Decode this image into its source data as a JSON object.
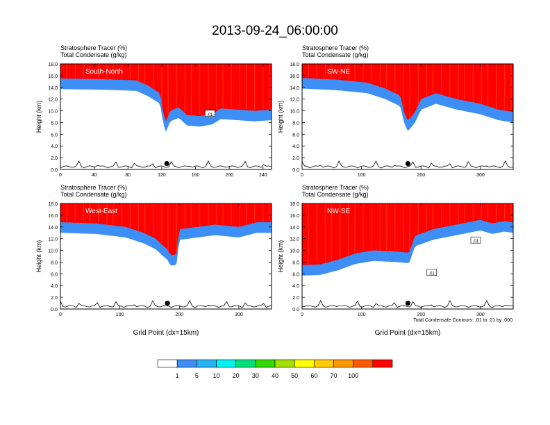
{
  "figure_title": "2013-09-24_06:00:00",
  "footnote": "Total Condensate Contours: .01 to .01 by .000",
  "colorbar": {
    "levels": [
      "1",
      "5",
      "10",
      "20",
      "30",
      "40",
      "50",
      "60",
      "70",
      "100"
    ],
    "colors": [
      "#ffffff",
      "#3d8ef5",
      "#27b3f2",
      "#00f2f2",
      "#00e07a",
      "#33d900",
      "#a3e000",
      "#ffff00",
      "#ffcc00",
      "#ff9900",
      "#ff5900",
      "#ff0000"
    ]
  },
  "chart_data": [
    {
      "type": "contour",
      "label": "South-North",
      "subtitle1": "Stratosphere Tracer   (%)",
      "subtitle2": "Total Condensate   (g/kg)",
      "xlabel": "",
      "ylabel": "Height (km)",
      "xlim": [
        0,
        250
      ],
      "ylim": [
        0,
        18
      ],
      "xticks": [
        "0",
        "40",
        "80",
        "120",
        "160",
        "200",
        "240"
      ],
      "xtick_values": [
        0,
        40,
        80,
        120,
        160,
        200,
        240
      ],
      "yticks": [
        "0.0",
        "2.0",
        "4.0",
        "6.0",
        "8.0",
        "10.0",
        "12.0",
        "14.0",
        "16.0",
        "18.0"
      ],
      "tracer_boundary_km": [
        [
          0,
          15.5
        ],
        [
          50,
          15.4
        ],
        [
          90,
          15.2
        ],
        [
          105,
          14.2
        ],
        [
          118,
          13.0
        ],
        [
          122,
          9.5
        ],
        [
          125,
          8.2
        ],
        [
          130,
          10.0
        ],
        [
          140,
          10.6
        ],
        [
          150,
          9.3
        ],
        [
          165,
          9.1
        ],
        [
          180,
          9.5
        ],
        [
          190,
          10.4
        ],
        [
          210,
          10.2
        ],
        [
          230,
          10.0
        ],
        [
          250,
          10.2
        ]
      ],
      "marker": [
        126,
        1.0
      ],
      "contour_label": ".01",
      "contour_label_pos": [
        177,
        9.5
      ]
    },
    {
      "type": "contour",
      "label": "SW-NE",
      "subtitle1": "Stratosphere Tracer   (%)",
      "subtitle2": "Total Condensate   (g/kg)",
      "xlabel": "",
      "ylabel": "Height (km)",
      "xlim": [
        0,
        355
      ],
      "ylim": [
        0,
        18
      ],
      "xticks": [
        "0",
        "100",
        "200",
        "300"
      ],
      "xtick_values": [
        0,
        100,
        200,
        300
      ],
      "yticks": [
        "0.0",
        "2.0",
        "4.0",
        "6.0",
        "8.0",
        "10.0",
        "12.0",
        "14.0",
        "16.0",
        "18.0"
      ],
      "tracer_boundary_km": [
        [
          0,
          15.6
        ],
        [
          60,
          15.3
        ],
        [
          110,
          14.8
        ],
        [
          140,
          13.8
        ],
        [
          165,
          12.6
        ],
        [
          172,
          9.6
        ],
        [
          178,
          8.3
        ],
        [
          190,
          9.8
        ],
        [
          200,
          12.0
        ],
        [
          215,
          12.6
        ],
        [
          225,
          13.0
        ],
        [
          260,
          12.0
        ],
        [
          300,
          11.2
        ],
        [
          330,
          10.2
        ],
        [
          355,
          9.8
        ]
      ],
      "marker": [
        178,
        1.0
      ],
      "contour_label": "",
      "contour_label_pos": [
        0,
        0
      ]
    },
    {
      "type": "contour",
      "label": "West-East",
      "subtitle1": "Stratosphere Tracer   (%)",
      "subtitle2": "Total Condensate   (g/kg)",
      "xlabel": "Grid Point (dx=15km)",
      "ylabel": "Height (km)",
      "xlim": [
        0,
        355
      ],
      "ylim": [
        0,
        18
      ],
      "xticks": [
        "0",
        "100",
        "200",
        "300"
      ],
      "xtick_values": [
        0,
        100,
        200,
        300
      ],
      "yticks": [
        "0.0",
        "2.0",
        "4.0",
        "6.0",
        "8.0",
        "10.0",
        "12.0",
        "14.0",
        "16.0",
        "18.0"
      ],
      "tracer_boundary_km": [
        [
          0,
          14.8
        ],
        [
          60,
          14.6
        ],
        [
          110,
          14.0
        ],
        [
          140,
          13.0
        ],
        [
          160,
          12.0
        ],
        [
          175,
          10.6
        ],
        [
          180,
          10.2
        ],
        [
          185,
          9.2
        ],
        [
          195,
          9.3
        ],
        [
          200,
          13.6
        ],
        [
          230,
          14.0
        ],
        [
          260,
          14.4
        ],
        [
          300,
          14.0
        ],
        [
          330,
          14.8
        ],
        [
          355,
          14.8
        ]
      ],
      "marker": [
        180,
        1.0
      ],
      "contour_label": "",
      "contour_label_pos": [
        0,
        0
      ]
    },
    {
      "type": "contour",
      "label": "NW-SE",
      "subtitle1": "Stratosphere Tracer   (%)",
      "subtitle2": "Total Condensate   (g/kg)",
      "xlabel": "Grid Point (dx=15km)",
      "ylabel": "Height (km)",
      "xlim": [
        0,
        355
      ],
      "ylim": [
        0,
        18
      ],
      "xticks": [
        "0",
        "100",
        "200",
        "300"
      ],
      "xtick_values": [
        0,
        100,
        200,
        300
      ],
      "yticks": [
        "0.0",
        "2.0",
        "4.0",
        "6.0",
        "8.0",
        "10.0",
        "12.0",
        "14.0",
        "16.0",
        "18.0"
      ],
      "tracer_boundary_km": [
        [
          0,
          7.5
        ],
        [
          30,
          7.6
        ],
        [
          60,
          8.4
        ],
        [
          90,
          9.5
        ],
        [
          120,
          10.0
        ],
        [
          160,
          9.8
        ],
        [
          180,
          9.6
        ],
        [
          190,
          12.5
        ],
        [
          220,
          13.6
        ],
        [
          250,
          14.2
        ],
        [
          280,
          14.8
        ],
        [
          300,
          15.2
        ],
        [
          320,
          14.6
        ],
        [
          340,
          15.0
        ],
        [
          355,
          14.8
        ]
      ],
      "marker": [
        178,
        1.0
      ],
      "contour_label": ".01",
      "contour_label_pos": [
        292,
        11.7
      ],
      "contour_label2": ".01",
      "contour_label2_pos": [
        218,
        6.2
      ]
    }
  ]
}
